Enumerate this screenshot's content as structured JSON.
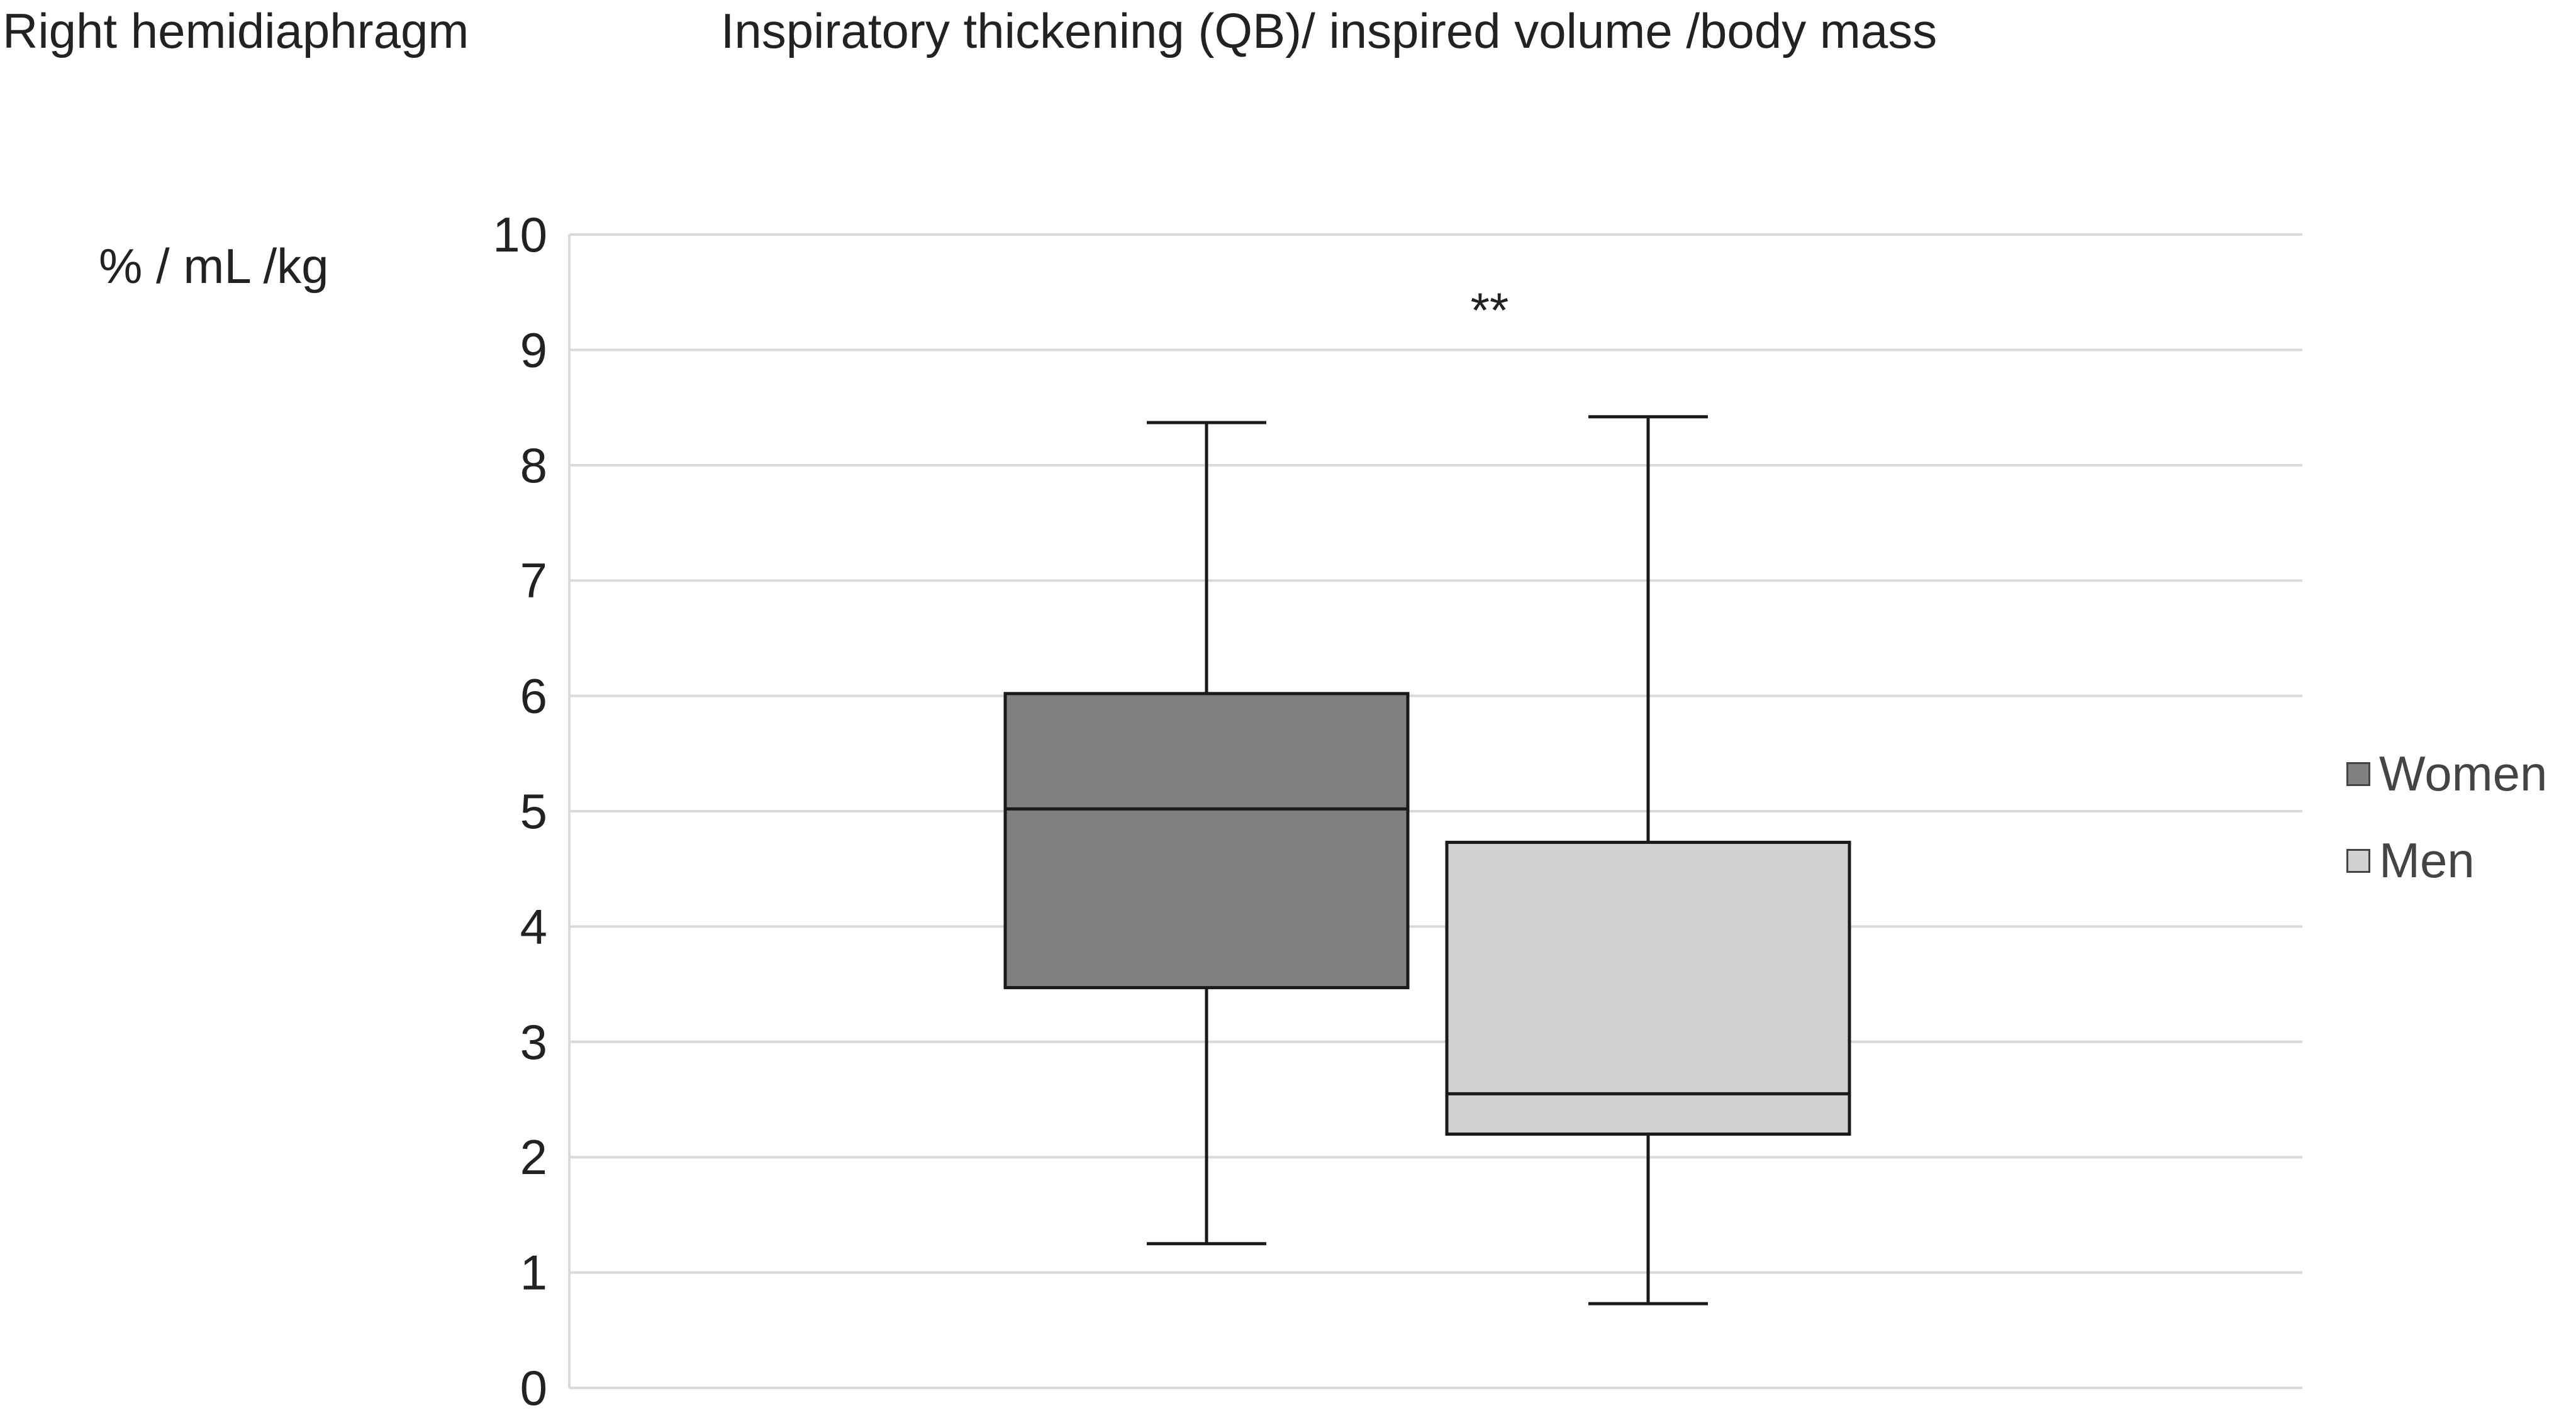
{
  "header": {
    "corner_label": "Right hemidiaphragm",
    "title": "Inspiratory thickening (QB)/ inspired volume /body mass"
  },
  "chart_data": {
    "type": "box",
    "title": "Inspiratory thickening (QB)/ inspired volume /body mass",
    "ylabel": "% / mL /kg",
    "xlabel": "",
    "ylim": [
      0,
      10
    ],
    "yticks": [
      0,
      1,
      2,
      3,
      4,
      5,
      6,
      7,
      8,
      9,
      10
    ],
    "grid": true,
    "legend_position": "right",
    "annotation": "**",
    "series": [
      {
        "name": "Women",
        "color": "#808080",
        "min": 1.25,
        "q1": 3.47,
        "median": 5.02,
        "q3": 6.02,
        "max": 8.37
      },
      {
        "name": "Men",
        "color": "#d2d1d2",
        "min": 0.73,
        "q1": 2.2,
        "median": 2.55,
        "q3": 4.73,
        "max": 8.42
      }
    ]
  }
}
